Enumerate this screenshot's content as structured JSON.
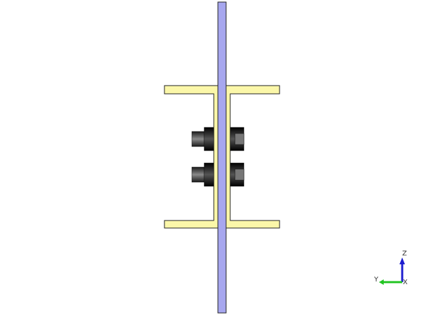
{
  "colors": {
    "background": "#ffffff",
    "plate_fill": "#a7a7ef",
    "channel_fill": "#fbf7a9",
    "outline": "#222222",
    "bolt_dark": "#1a1a1a",
    "bolt_mid": "#6a6a6a",
    "axis_z": "#1e1ecf",
    "axis_y": "#21c421"
  },
  "triad": {
    "z_label": "Z",
    "y_label": "Y",
    "x_label": "X"
  }
}
